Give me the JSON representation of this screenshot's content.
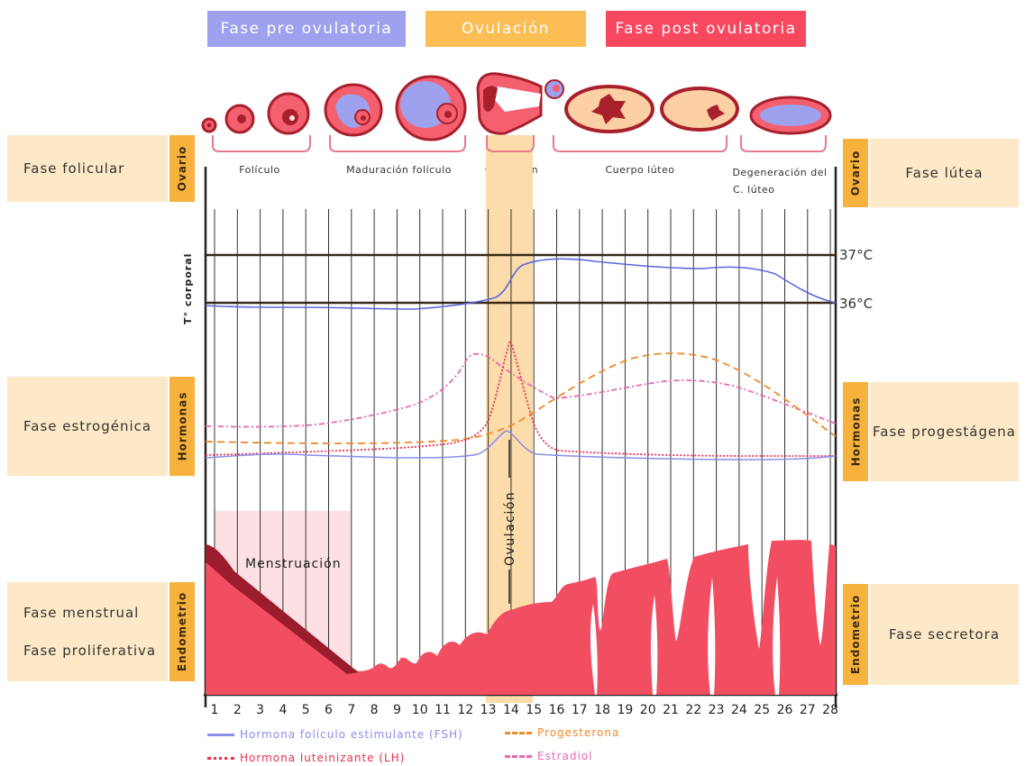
{
  "phases": {
    "pre": {
      "label": "Fase pre ovulatoria",
      "color": "#9ea1ee"
    },
    "ovulation": {
      "label": "Ovulación",
      "color": "#fbbd54"
    },
    "post": {
      "label": "Fase post ovulatoria",
      "color": "#f84860"
    }
  },
  "left": {
    "folicular": "Fase folicular",
    "estrogenica": "Fase estrogénica",
    "menstrual": "Fase menstrual",
    "proliferativa": "Fase proliferativa"
  },
  "right": {
    "lutea": "Fase lútea",
    "progestagena": "Fase progestágena",
    "secretora": "Fase secretora"
  },
  "tabs": {
    "ovario": "Ovario",
    "hormonas": "Hormonas",
    "endometrio": "Endometrio"
  },
  "ovary_stages": {
    "foliculo": "Folículo",
    "maduracion": "Maduración folículo",
    "ovulacion": "Ovulación",
    "cuerpo_luteo": "Cuerpo lúteo",
    "degeneracion_1": "Degeneración del",
    "degeneracion_2": "C. lúteo"
  },
  "temperature": {
    "axis_label": "T° corporal",
    "high": "37°C",
    "low": "36°C"
  },
  "ovulation_band_label": "Ovulación",
  "menstruation_label": "Menstruación",
  "days": [
    "1",
    "2",
    "3",
    "4",
    "5",
    "6",
    "7",
    "8",
    "9",
    "10",
    "11",
    "12",
    "13",
    "14",
    "15",
    "16",
    "17",
    "18",
    "19",
    "20",
    "21",
    "22",
    "23",
    "24",
    "25",
    "26",
    "27",
    "28"
  ],
  "legend": {
    "fsh": {
      "label": "Hormona folículo estimulante (FSH)",
      "color": "#8a8ee8"
    },
    "lh": {
      "label": "Hormona luteinizante (LH)",
      "color": "#e83050"
    },
    "progesterona": {
      "label": "Progesterona",
      "color": "#f0892a"
    },
    "estradiol": {
      "label": "Estradiol",
      "color": "#e868b0"
    }
  },
  "colors": {
    "temperature_line": "#5a68e0",
    "endometrium": "#f24e62",
    "endometrium_dark": "#9b1c2c",
    "menstruation_fill": "#fde0e3",
    "ovulation_band": "#fbdcaa",
    "ovary_outline": "#a8202c",
    "ovary_fill": "#f46070",
    "ovary_inner": "#9ea1ee",
    "luteum_fill": "#fccfa4"
  }
}
